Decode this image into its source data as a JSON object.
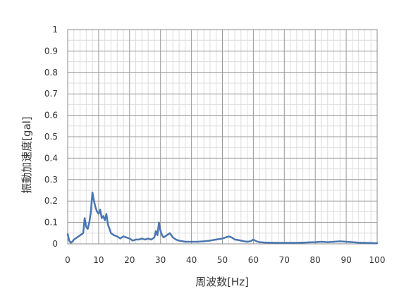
{
  "chart_data": {
    "type": "line",
    "title": "",
    "xlabel": "周波数[Hz]",
    "ylabel": "振動加速度[gal]",
    "xlim": [
      0,
      100
    ],
    "ylim": [
      0,
      1
    ],
    "x_ticks": [
      "0",
      "10",
      "20",
      "30",
      "40",
      "50",
      "60",
      "70",
      "80",
      "90",
      "100"
    ],
    "y_ticks": [
      "0",
      "0.1",
      "0.2",
      "0.3",
      "0.4",
      "0.5",
      "0.6",
      "0.7",
      "0.8",
      "0.9",
      "1"
    ],
    "grid": true,
    "series": [
      {
        "color": "#4a76b0",
        "x": [
          0,
          0.5,
          1,
          1.5,
          2,
          3,
          4,
          5,
          5.5,
          6,
          6.5,
          7,
          7.5,
          8,
          8.5,
          9,
          9.5,
          10,
          10.5,
          11,
          11.5,
          12,
          12.5,
          13,
          13.5,
          14,
          15,
          16,
          17,
          18,
          19,
          20,
          21,
          22,
          23,
          24,
          25,
          26,
          27,
          28,
          28.5,
          29,
          29.5,
          30,
          30.5,
          31,
          32,
          33,
          34,
          35,
          36,
          38,
          40,
          42,
          44,
          46,
          48,
          50,
          51,
          52,
          53,
          54,
          55,
          56,
          57,
          58,
          59,
          60,
          61,
          62,
          64,
          66,
          68,
          70,
          72,
          74,
          76,
          78,
          80,
          82,
          84,
          86,
          88,
          90,
          92,
          94,
          96,
          98,
          100
        ],
        "y": [
          0.045,
          0.015,
          0.005,
          0.01,
          0.02,
          0.03,
          0.04,
          0.05,
          0.12,
          0.08,
          0.07,
          0.1,
          0.15,
          0.24,
          0.2,
          0.17,
          0.15,
          0.14,
          0.16,
          0.12,
          0.13,
          0.11,
          0.14,
          0.09,
          0.07,
          0.05,
          0.04,
          0.035,
          0.025,
          0.035,
          0.03,
          0.025,
          0.015,
          0.02,
          0.02,
          0.025,
          0.02,
          0.025,
          0.02,
          0.03,
          0.06,
          0.04,
          0.1,
          0.06,
          0.04,
          0.03,
          0.04,
          0.05,
          0.03,
          0.02,
          0.015,
          0.01,
          0.01,
          0.01,
          0.012,
          0.015,
          0.02,
          0.025,
          0.03,
          0.035,
          0.03,
          0.02,
          0.018,
          0.015,
          0.012,
          0.01,
          0.012,
          0.02,
          0.012,
          0.008,
          0.006,
          0.006,
          0.005,
          0.005,
          0.005,
          0.005,
          0.006,
          0.007,
          0.008,
          0.01,
          0.008,
          0.01,
          0.012,
          0.01,
          0.008,
          0.006,
          0.005,
          0.004,
          0.003
        ]
      }
    ]
  }
}
